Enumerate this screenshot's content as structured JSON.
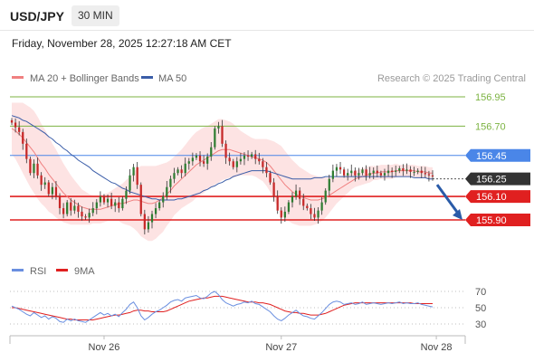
{
  "header": {
    "symbol": "USD/JPY",
    "timeframe": "30 MIN",
    "timestamp": "Friday, November 28, 2025 12:27:18 AM CET"
  },
  "colors": {
    "bollinger_fill": "#fde0e0",
    "ma20": "#f08080",
    "ma50": "#3a5da8",
    "resistance": "#7cb342",
    "pivot": "#4a86e8",
    "support": "#e02020",
    "current": "#333333",
    "candle_up": "#2e7d32",
    "candle_down": "#c62828",
    "rsi": "#6a8fe0",
    "rsi_ma": "#e02020",
    "arrow": "#2a5ba8"
  },
  "chart_data": [
    {
      "type": "candlestick",
      "legend": [
        {
          "name": "MA 20 + Bollinger Bands",
          "color": "#f08080"
        },
        {
          "name": "MA 50",
          "color": "#3a5da8"
        }
      ],
      "legend_position": "top-left",
      "watermark": "Research © 2025 Trading Central",
      "x_ticks": [
        "Nov 26",
        "Nov 27",
        "Nov 28"
      ],
      "x_tick_index": [
        25,
        73,
        115
      ],
      "ylim": [
        155.77,
        157.0
      ],
      "grid": false,
      "levels": [
        {
          "value": 156.95,
          "label": "156.95",
          "kind": "resistance"
        },
        {
          "value": 156.7,
          "label": "156.70",
          "kind": "resistance"
        },
        {
          "value": 156.45,
          "label": "156.45",
          "kind": "pivot"
        },
        {
          "value": 156.25,
          "label": "156.25",
          "kind": "current"
        },
        {
          "value": 156.1,
          "label": "156.10",
          "kind": "support"
        },
        {
          "value": 155.9,
          "label": "155.90",
          "kind": "support"
        }
      ],
      "close": [
        156.73,
        156.69,
        156.65,
        156.55,
        156.42,
        156.3,
        156.38,
        156.28,
        156.2,
        156.22,
        156.12,
        156.18,
        156.1,
        156.0,
        155.95,
        156.05,
        155.98,
        156.02,
        155.97,
        155.93,
        155.92,
        155.96,
        156.0,
        156.05,
        156.1,
        156.05,
        156.08,
        156.02,
        156.05,
        156.0,
        156.08,
        156.15,
        156.28,
        156.35,
        156.2,
        155.95,
        155.82,
        155.88,
        155.95,
        156.0,
        156.05,
        156.1,
        156.18,
        156.25,
        156.3,
        156.33,
        156.3,
        156.38,
        156.4,
        156.43,
        156.45,
        156.4,
        156.38,
        156.44,
        156.52,
        156.68,
        156.7,
        156.55,
        156.43,
        156.4,
        156.35,
        156.4,
        156.42,
        156.45,
        156.44,
        156.46,
        156.42,
        156.4,
        156.35,
        156.3,
        156.22,
        156.1,
        155.98,
        155.92,
        155.97,
        156.05,
        156.1,
        156.15,
        156.08,
        156.02,
        156.0,
        155.95,
        155.92,
        155.98,
        156.05,
        156.15,
        156.25,
        156.32,
        156.35,
        156.33,
        156.28,
        156.3,
        156.32,
        156.28,
        156.3,
        156.33,
        156.28,
        156.3,
        156.32,
        156.3,
        156.28,
        156.3,
        156.32,
        156.31,
        156.32,
        156.34,
        156.32,
        156.33,
        156.31,
        156.31,
        156.32,
        156.3,
        156.29,
        156.28,
        156.27
      ],
      "ma20": [
        156.68,
        156.66,
        156.63,
        156.6,
        156.56,
        156.52,
        156.48,
        156.43,
        156.38,
        156.34,
        156.29,
        156.25,
        156.21,
        156.17,
        156.13,
        156.1,
        156.07,
        156.05,
        156.03,
        156.01,
        156.0,
        155.99,
        155.99,
        155.99,
        155.99,
        156.0,
        156.01,
        156.02,
        156.03,
        156.04,
        156.04,
        156.05,
        156.06,
        156.07,
        156.07,
        156.06,
        156.05,
        156.04,
        156.04,
        156.05,
        156.07,
        156.09,
        156.12,
        156.15,
        156.19,
        156.22,
        156.25,
        156.28,
        156.31,
        156.34,
        156.37,
        156.39,
        156.41,
        156.43,
        156.45,
        156.47,
        156.49,
        156.5,
        156.5,
        156.5,
        156.49,
        156.48,
        156.47,
        156.46,
        156.45,
        156.44,
        156.43,
        156.42,
        156.41,
        156.39,
        156.36,
        156.32,
        156.28,
        156.24,
        156.2,
        156.17,
        156.14,
        156.12,
        156.1,
        156.09,
        156.08,
        156.07,
        156.07,
        156.07,
        156.08,
        156.09,
        156.11,
        156.13,
        156.15,
        156.17,
        156.19,
        156.21,
        156.23,
        156.25,
        156.26,
        156.27,
        156.28,
        156.29,
        156.3,
        156.3,
        156.31,
        156.31,
        156.31,
        156.31,
        156.32,
        156.32,
        156.32,
        156.32,
        156.32,
        156.32,
        156.31,
        156.31,
        156.31,
        156.3,
        156.3
      ],
      "ma50": [
        156.79,
        156.78,
        156.77,
        156.75,
        156.74,
        156.72,
        156.7,
        156.68,
        156.66,
        156.64,
        156.61,
        156.59,
        156.56,
        156.54,
        156.51,
        156.49,
        156.46,
        156.44,
        156.41,
        156.39,
        156.37,
        156.35,
        156.32,
        156.3,
        156.28,
        156.26,
        156.24,
        156.22,
        156.21,
        156.19,
        156.17,
        156.16,
        156.14,
        156.13,
        156.12,
        156.11,
        156.1,
        156.09,
        156.08,
        156.08,
        156.07,
        156.07,
        156.07,
        156.07,
        156.07,
        156.08,
        156.08,
        156.09,
        156.1,
        156.11,
        156.12,
        156.13,
        156.15,
        156.16,
        156.18,
        156.19,
        156.21,
        156.22,
        156.24,
        156.25,
        156.27,
        156.28,
        156.29,
        156.3,
        156.31,
        156.32,
        156.32,
        156.32,
        156.32,
        156.32,
        156.31,
        156.3,
        156.29,
        156.28,
        156.27,
        156.26,
        156.25,
        156.25,
        156.25,
        156.25,
        156.25,
        156.25,
        156.26,
        156.26,
        156.26,
        156.27,
        156.27,
        156.27,
        156.27,
        156.27,
        156.27,
        156.27,
        156.27,
        156.27,
        156.27,
        156.27,
        156.27,
        156.27,
        156.27,
        156.27,
        156.27,
        156.27,
        156.27,
        156.27,
        156.27,
        156.27,
        156.27,
        156.27,
        156.27,
        156.26,
        156.26,
        156.26,
        156.26,
        156.25,
        156.25
      ],
      "bb_width": [
        0.22,
        0.24,
        0.27,
        0.3,
        0.32,
        0.34,
        0.35,
        0.35,
        0.34,
        0.33,
        0.32,
        0.3,
        0.29,
        0.27,
        0.25,
        0.23,
        0.21,
        0.19,
        0.17,
        0.15,
        0.14,
        0.13,
        0.12,
        0.12,
        0.12,
        0.12,
        0.12,
        0.13,
        0.14,
        0.15,
        0.17,
        0.19,
        0.21,
        0.24,
        0.27,
        0.3,
        0.31,
        0.32,
        0.32,
        0.31,
        0.3,
        0.29,
        0.27,
        0.26,
        0.25,
        0.25,
        0.25,
        0.26,
        0.27,
        0.28,
        0.28,
        0.28,
        0.28,
        0.27,
        0.27,
        0.27,
        0.27,
        0.26,
        0.25,
        0.24,
        0.23,
        0.21,
        0.19,
        0.18,
        0.17,
        0.16,
        0.16,
        0.17,
        0.18,
        0.2,
        0.22,
        0.25,
        0.27,
        0.29,
        0.29,
        0.28,
        0.27,
        0.26,
        0.25,
        0.24,
        0.23,
        0.22,
        0.21,
        0.2,
        0.19,
        0.17,
        0.15,
        0.13,
        0.11,
        0.1,
        0.09,
        0.08,
        0.07,
        0.07,
        0.07,
        0.07,
        0.07,
        0.07,
        0.06,
        0.06,
        0.06,
        0.06,
        0.06,
        0.06,
        0.06,
        0.05,
        0.05,
        0.05,
        0.05,
        0.05,
        0.05,
        0.05,
        0.05,
        0.05,
        0.05
      ],
      "projection": {
        "from": 156.2,
        "to": 155.9
      }
    },
    {
      "type": "line",
      "legend": [
        {
          "name": "RSI",
          "color": "#6a8fe0"
        },
        {
          "name": "9MA",
          "color": "#e02020"
        }
      ],
      "ylim": [
        25,
        78
      ],
      "y_ticks": [
        70,
        50,
        30
      ],
      "rsi": [
        52,
        50,
        48,
        45,
        42,
        40,
        44,
        41,
        38,
        40,
        36,
        39,
        37,
        33,
        32,
        36,
        34,
        36,
        34,
        33,
        32,
        35,
        38,
        41,
        44,
        41,
        43,
        40,
        42,
        39,
        44,
        48,
        54,
        57,
        50,
        40,
        35,
        38,
        42,
        45,
        47,
        50,
        53,
        57,
        59,
        60,
        58,
        62,
        63,
        64,
        65,
        62,
        61,
        64,
        68,
        70,
        66,
        60,
        56,
        54,
        52,
        54,
        55,
        57,
        56,
        58,
        55,
        54,
        51,
        48,
        45,
        40,
        36,
        34,
        37,
        41,
        44,
        47,
        43,
        40,
        39,
        37,
        36,
        40,
        44,
        49,
        54,
        57,
        58,
        57,
        54,
        55,
        56,
        54,
        55,
        57,
        54,
        55,
        56,
        55,
        54,
        55,
        56,
        55,
        56,
        57,
        55,
        56,
        55,
        55,
        56,
        54,
        53,
        52,
        51
      ],
      "rsi_ma": [
        50,
        50,
        49,
        48,
        47,
        46,
        45,
        44,
        43,
        42,
        41,
        40,
        39,
        38,
        37,
        36,
        36,
        35,
        35,
        35,
        35,
        35,
        35,
        36,
        37,
        38,
        39,
        40,
        41,
        41,
        42,
        43,
        44,
        46,
        47,
        47,
        46,
        46,
        45,
        45,
        45,
        45,
        46,
        48,
        50,
        52,
        54,
        56,
        58,
        59,
        60,
        61,
        62,
        62,
        63,
        64,
        64,
        64,
        63,
        62,
        61,
        60,
        59,
        58,
        57,
        57,
        57,
        56,
        56,
        55,
        54,
        52,
        50,
        48,
        46,
        45,
        44,
        44,
        43,
        43,
        42,
        41,
        41,
        41,
        42,
        43,
        45,
        47,
        49,
        51,
        53,
        54,
        55,
        56,
        56,
        56,
        56,
        56,
        56,
        56,
        56,
        56,
        56,
        56,
        56,
        56,
        56,
        56,
        56,
        55,
        55,
        55,
        55,
        55,
        55
      ]
    }
  ]
}
